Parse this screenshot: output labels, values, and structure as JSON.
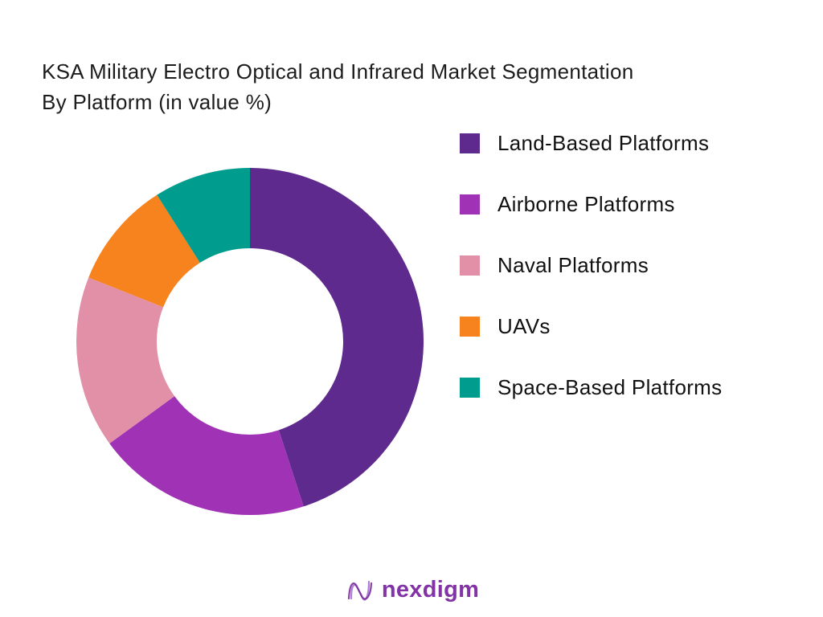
{
  "title": {
    "line1": "KSA Military Electro Optical and Infrared Market Segmentation",
    "line2": "By Platform (in value %)"
  },
  "chart_data": {
    "type": "pie",
    "subtype": "donut",
    "title": "KSA Military Electro Optical and Infrared Market Segmentation By Platform (in value %)",
    "value_unit": "value %",
    "data_labels_shown": false,
    "values_estimated_from_angles": true,
    "start_angle": "top",
    "direction": "clockwise",
    "legend_position": "right",
    "segments": [
      {
        "label": "Land-Based Platforms",
        "value": 45,
        "color": "#5e2a8d"
      },
      {
        "label": "Airborne Platforms",
        "value": 20,
        "color": "#a032b5"
      },
      {
        "label": "Naval Platforms",
        "value": 16,
        "color": "#e190a7"
      },
      {
        "label": "UAVs",
        "value": 10,
        "color": "#f6831d"
      },
      {
        "label": "Space-Based Platforms",
        "value": 9,
        "color": "#009c8d"
      }
    ]
  },
  "footer": {
    "brand": "nexdigm",
    "brand_color": "#8233a6"
  }
}
